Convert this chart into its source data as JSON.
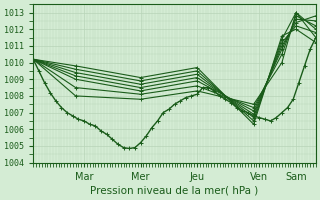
{
  "background_color": "#d4ecd4",
  "plot_bg_color": "#d4ecd4",
  "line_color": "#1a5c1a",
  "grid_color": "#b8d4b8",
  "tick_color": "#1a5c1a",
  "xlabel": "Pression niveau de la mer( hPa )",
  "ylim": [
    1004,
    1013.5
  ],
  "yticks": [
    1004,
    1005,
    1006,
    1007,
    1008,
    1009,
    1010,
    1011,
    1012,
    1013
  ],
  "day_positions": [
    0.18,
    0.38,
    0.58,
    0.8,
    0.93
  ],
  "day_labels": [
    "Mar",
    "Mer",
    "Jeu",
    "Ven",
    "Sam"
  ],
  "figsize": [
    3.2,
    2.0
  ],
  "dpi": 100,
  "forecast_series": [
    {
      "x": [
        0.0,
        0.15,
        0.38,
        0.58,
        0.78,
        0.88,
        0.93,
        1.0
      ],
      "y": [
        1010.2,
        1008.0,
        1007.8,
        1008.3,
        1007.5,
        1010.0,
        1013.0,
        1012.0
      ]
    },
    {
      "x": [
        0.0,
        0.15,
        0.38,
        0.58,
        0.78,
        0.88,
        0.93,
        1.0
      ],
      "y": [
        1010.2,
        1008.5,
        1008.1,
        1008.6,
        1007.3,
        1010.5,
        1012.8,
        1012.2
      ]
    },
    {
      "x": [
        0.0,
        0.15,
        0.38,
        0.58,
        0.78,
        0.88,
        0.93,
        1.0
      ],
      "y": [
        1010.2,
        1009.0,
        1008.3,
        1008.9,
        1007.1,
        1010.8,
        1012.6,
        1012.5
      ]
    },
    {
      "x": [
        0.0,
        0.15,
        0.38,
        0.58,
        0.78,
        0.88,
        0.93,
        1.0
      ],
      "y": [
        1010.2,
        1009.2,
        1008.5,
        1009.1,
        1006.9,
        1011.0,
        1012.4,
        1012.8
      ]
    },
    {
      "x": [
        0.0,
        0.15,
        0.38,
        0.58,
        0.78,
        0.88,
        0.93,
        1.0
      ],
      "y": [
        1010.2,
        1009.4,
        1008.7,
        1009.3,
        1006.7,
        1011.2,
        1012.2,
        1011.8
      ]
    },
    {
      "x": [
        0.0,
        0.15,
        0.38,
        0.58,
        0.78,
        0.88,
        0.93,
        1.0
      ],
      "y": [
        1010.2,
        1009.6,
        1008.9,
        1009.5,
        1006.5,
        1011.4,
        1013.0,
        1011.5
      ]
    },
    {
      "x": [
        0.0,
        0.15,
        0.38,
        0.58,
        0.78,
        0.88,
        0.93,
        1.0
      ],
      "y": [
        1010.2,
        1009.8,
        1009.1,
        1009.7,
        1006.3,
        1011.6,
        1012.0,
        1011.2
      ]
    }
  ],
  "main_x": [
    0.0,
    0.02,
    0.04,
    0.06,
    0.08,
    0.1,
    0.12,
    0.14,
    0.16,
    0.18,
    0.2,
    0.22,
    0.24,
    0.26,
    0.28,
    0.3,
    0.32,
    0.34,
    0.36,
    0.38,
    0.4,
    0.42,
    0.44,
    0.46,
    0.48,
    0.5,
    0.52,
    0.54,
    0.56,
    0.58,
    0.6,
    0.62,
    0.64,
    0.66,
    0.68,
    0.7,
    0.72,
    0.74,
    0.76,
    0.78,
    0.8,
    0.82,
    0.84,
    0.86,
    0.88,
    0.9,
    0.92,
    0.94,
    0.96,
    0.98,
    1.0
  ],
  "main_y": [
    1010.2,
    1009.5,
    1008.8,
    1008.2,
    1007.7,
    1007.3,
    1007.0,
    1006.8,
    1006.6,
    1006.5,
    1006.3,
    1006.2,
    1005.9,
    1005.7,
    1005.4,
    1005.1,
    1004.9,
    1004.85,
    1004.9,
    1005.2,
    1005.6,
    1006.1,
    1006.5,
    1007.0,
    1007.2,
    1007.5,
    1007.7,
    1007.9,
    1008.0,
    1008.1,
    1008.5,
    1008.5,
    1008.3,
    1008.0,
    1007.8,
    1007.6,
    1007.3,
    1007.1,
    1007.0,
    1006.8,
    1006.7,
    1006.6,
    1006.5,
    1006.7,
    1007.0,
    1007.3,
    1007.8,
    1008.8,
    1009.8,
    1010.8,
    1011.5
  ]
}
